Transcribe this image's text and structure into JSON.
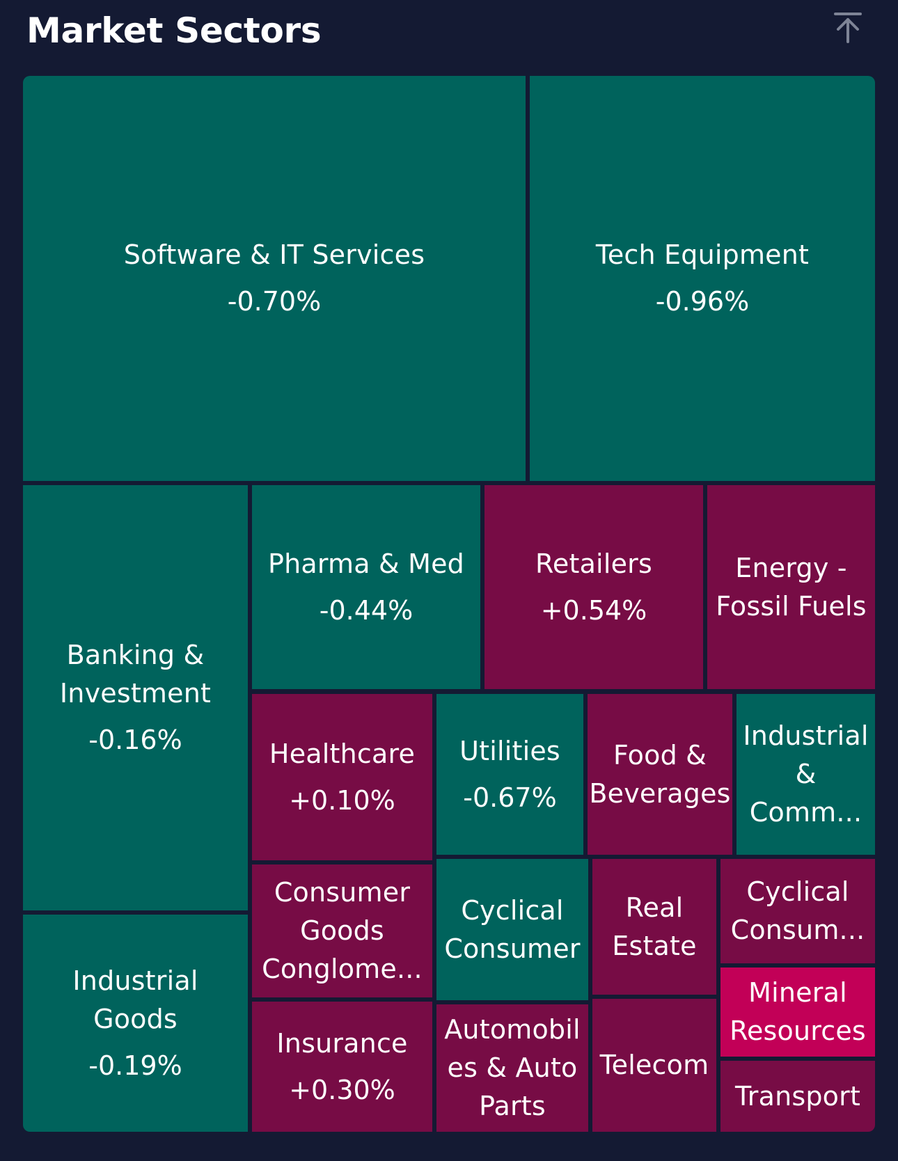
{
  "header": {
    "title": "Market Sectors",
    "collapse_icon": "arrow-up-to-line-icon"
  },
  "colors": {
    "background": "#141a33",
    "down": "#00635c",
    "up": "#770c45",
    "strong_up": "#c20057",
    "text": "#ffffff",
    "icon": "#7e8496"
  },
  "sectors": [
    {
      "name": "Software & IT Services",
      "change": "-0.70%",
      "trend": "down"
    },
    {
      "name": "Tech Equipment",
      "change": "-0.96%",
      "trend": "down"
    },
    {
      "name": "Banking & Investment",
      "change": "-0.16%",
      "trend": "down"
    },
    {
      "name": "Pharma & Med",
      "change": "-0.44%",
      "trend": "down"
    },
    {
      "name": "Retailers",
      "change": "+0.54%",
      "trend": "up"
    },
    {
      "name": "Energy - Fossil Fuels",
      "change": "",
      "trend": "up"
    },
    {
      "name": "Healthcare",
      "change": "+0.10%",
      "trend": "up"
    },
    {
      "name": "Utilities",
      "change": "-0.67%",
      "trend": "down"
    },
    {
      "name": "Food & Beverages",
      "change": "",
      "trend": "up"
    },
    {
      "name": "Industrial & Comm...",
      "change": "",
      "trend": "down"
    },
    {
      "name": "Industrial Goods",
      "change": "-0.19%",
      "trend": "down"
    },
    {
      "name": "Consumer Goods Conglome...",
      "change": "",
      "trend": "up"
    },
    {
      "name": "Cyclical Consumer",
      "change": "",
      "trend": "down"
    },
    {
      "name": "Real Estate",
      "change": "",
      "trend": "up"
    },
    {
      "name": "Cyclical Consum...",
      "change": "",
      "trend": "up"
    },
    {
      "name": "Mineral Resources",
      "change": "",
      "trend": "strong_up"
    },
    {
      "name": "Insurance",
      "change": "+0.30%",
      "trend": "up"
    },
    {
      "name": "Automobiles & Auto Parts",
      "change": "",
      "trend": "up"
    },
    {
      "name": "Telecom",
      "change": "",
      "trend": "up"
    },
    {
      "name": "Transport",
      "change": "",
      "trend": "up"
    }
  ]
}
